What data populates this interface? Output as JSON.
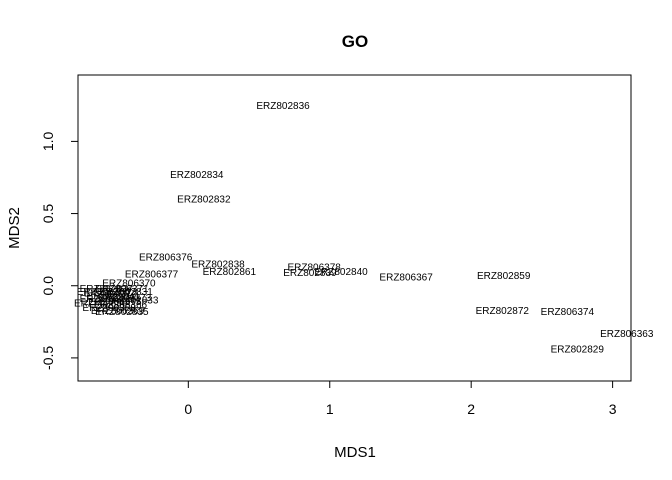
{
  "chart_data": {
    "type": "scatter",
    "title": "GO",
    "xlabel": "MDS1",
    "ylabel": "MDS2",
    "xlim": [
      -0.78,
      3.13
    ],
    "ylim": [
      -0.66,
      1.46
    ],
    "grid": false,
    "x_ticks": [
      0,
      1,
      2,
      3
    ],
    "x_tick_labels": [
      "0",
      "1",
      "2",
      "3"
    ],
    "y_ticks": [
      -0.5,
      0.0,
      0.5,
      1.0
    ],
    "y_tick_labels": [
      "-0.5",
      "0.0",
      "0.5",
      "1.0"
    ],
    "points": [
      {
        "label": "ERZ802836",
        "x": 0.67,
        "y": 1.25
      },
      {
        "label": "ERZ802834",
        "x": 0.06,
        "y": 0.77
      },
      {
        "label": "ERZ802832",
        "x": 0.11,
        "y": 0.6
      },
      {
        "label": "ERZ806376",
        "x": -0.16,
        "y": 0.2
      },
      {
        "label": "ERZ802838",
        "x": 0.21,
        "y": 0.15
      },
      {
        "label": "ERZ802861",
        "x": 0.29,
        "y": 0.1
      },
      {
        "label": "ERZ806377",
        "x": -0.26,
        "y": 0.08
      },
      {
        "label": "ERZ806378",
        "x": 0.89,
        "y": 0.13
      },
      {
        "label": "ERZ802839",
        "x": 0.86,
        "y": 0.09
      },
      {
        "label": "ERZ802840",
        "x": 1.08,
        "y": 0.1
      },
      {
        "label": "ERZ806367",
        "x": 1.54,
        "y": 0.06
      },
      {
        "label": "ERZ802859",
        "x": 2.23,
        "y": 0.07
      },
      {
        "label": "ERZ802872",
        "x": 2.22,
        "y": -0.17
      },
      {
        "label": "ERZ806374",
        "x": 2.68,
        "y": -0.18
      },
      {
        "label": "ERZ806363",
        "x": 3.1,
        "y": -0.33
      },
      {
        "label": "ERZ802829",
        "x": 2.75,
        "y": -0.44
      },
      {
        "label": "ERZ806370",
        "x": -0.42,
        "y": 0.02
      },
      {
        "label": "ERZ806371",
        "x": -0.47,
        "y": -0.02
      },
      {
        "label": "ERZ806372",
        "x": -0.55,
        "y": -0.05
      },
      {
        "label": "ERZ806373",
        "x": -0.45,
        "y": -0.08
      },
      {
        "label": "ERZ806375",
        "x": -0.52,
        "y": -0.11
      },
      {
        "label": "ERZ806364",
        "x": -0.6,
        "y": -0.04
      },
      {
        "label": "ERZ806365",
        "x": -0.58,
        "y": -0.09
      },
      {
        "label": "ERZ806366",
        "x": -0.48,
        "y": -0.13
      },
      {
        "label": "ERZ806368",
        "x": -0.56,
        "y": -0.15
      },
      {
        "label": "ERZ806369",
        "x": -0.5,
        "y": -0.17
      },
      {
        "label": "ERZ802830",
        "x": -0.62,
        "y": -0.12
      },
      {
        "label": "ERZ802831",
        "x": -0.44,
        "y": -0.04
      },
      {
        "label": "ERZ802833",
        "x": -0.4,
        "y": -0.1
      },
      {
        "label": "ERZ802835",
        "x": -0.47,
        "y": -0.18
      },
      {
        "label": "ERZ802837",
        "x": -0.58,
        "y": -0.02
      },
      {
        "label": "ERZ802841",
        "x": -0.53,
        "y": -0.07
      }
    ]
  }
}
